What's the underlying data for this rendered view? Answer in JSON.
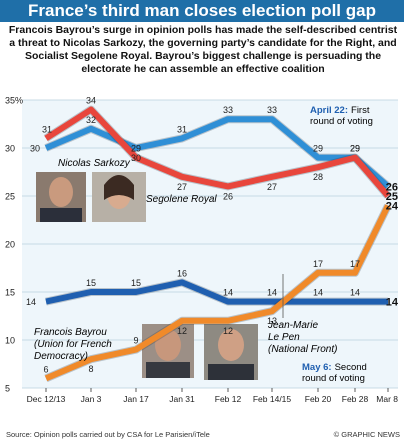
{
  "title": "France’s third man closes election poll gap",
  "intro": "Francois Bayrou’s surge in opinion polls has made the self-described centrist a threat to Nicolas Sarkozy, the governing party’s candidate for the Right, and Socialist Segolene Royal. Bayrou’s biggest challenge is persuading the electorate he can assemble an effective coalition",
  "annotations": {
    "april22_bold": "April 22:",
    "april22_rest": "First",
    "april22_line2": "round of voting",
    "may6_bold": "May 6:",
    "may6_rest": "Second",
    "may6_line2": "round of voting"
  },
  "labels": {
    "sarkozy": "Nicolas Sarkozy",
    "royal": "Segolene Royal",
    "lepen_1": "Jean-Marie",
    "lepen_2": "Le Pen",
    "lepen_3": "(National Front)",
    "bayrou_1": "Francois Bayrou",
    "bayrou_2": "(Union for French",
    "bayrou_3": "Democracy)"
  },
  "footer": {
    "source": "Source: Opinion polls carried out by CSA for Le Parisien/iTele",
    "credit": "© GRAPHIC NEWS"
  },
  "colors": {
    "sarkozy": "#2f8fd6",
    "royal": "#e8463c",
    "lepen": "#1f5fb0",
    "bayrou": "#f08a2a",
    "title_bar": "#1f6fa8",
    "plot_bg": "#eef6fb"
  },
  "chart_data": {
    "type": "line",
    "categories": [
      "Dec 12/13",
      "Jan 3",
      "Jan 17",
      "Jan 31",
      "Feb 12",
      "Feb 14/15",
      "Feb 20",
      "Feb 28",
      "Mar 8"
    ],
    "ylim": [
      5,
      35
    ],
    "yticks": [
      5,
      10,
      15,
      20,
      25,
      30,
      35
    ],
    "ytick_labels": [
      "5",
      "10",
      "15",
      "20",
      "25",
      "30",
      "35%"
    ],
    "grid": true,
    "series": [
      {
        "name": "Nicolas Sarkozy",
        "key": "sarkozy",
        "values": [
          30,
          32,
          30,
          31,
          33,
          33,
          29,
          29,
          26
        ]
      },
      {
        "name": "Segolene Royal",
        "key": "royal",
        "values": [
          31,
          34,
          29,
          27,
          26,
          27,
          28,
          29,
          25
        ]
      },
      {
        "name": "Jean-Marie Le Pen",
        "key": "lepen",
        "values": [
          14,
          15,
          15,
          16,
          14,
          14,
          14,
          14,
          14
        ]
      },
      {
        "name": "Francois Bayrou",
        "key": "bayrou",
        "values": [
          6,
          8,
          9,
          12,
          12,
          13,
          17,
          17,
          24
        ]
      }
    ]
  }
}
